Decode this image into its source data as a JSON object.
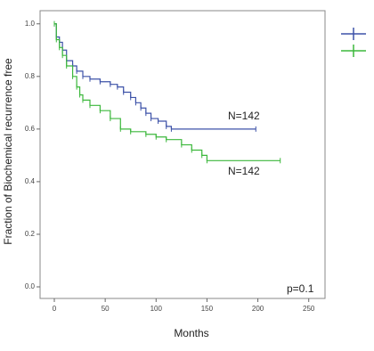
{
  "chart_data": {
    "type": "line",
    "y_label": "Fraction of Biochemical recurrence free",
    "x_label": "Months",
    "annotations": [
      "N=142",
      "N=142",
      "p=0.1"
    ],
    "xlim": [
      -14,
      266
    ],
    "xticks": [
      0,
      50,
      100,
      150,
      200,
      250
    ],
    "ylim": [
      -0.044,
      1.05
    ],
    "yticks": [
      {
        "value": 0,
        "label": "0.0"
      },
      {
        "value": 0.2,
        "label": "0.2"
      },
      {
        "value": 0.4,
        "label": "0.4"
      },
      {
        "value": 0.6,
        "label": "0.6"
      },
      {
        "value": 0.8,
        "label": "0.8"
      },
      {
        "value": 1,
        "label": "1.0"
      }
    ],
    "series": [
      {
        "color": "#3d52a8",
        "x": [
          0,
          2,
          5,
          8,
          12,
          18,
          22,
          28,
          35,
          45,
          55,
          62,
          68,
          75,
          80,
          85,
          90,
          95,
          102,
          110,
          115,
          198
        ],
        "values": [
          1.0,
          0.95,
          0.93,
          0.9,
          0.86,
          0.84,
          0.82,
          0.8,
          0.79,
          0.78,
          0.77,
          0.76,
          0.74,
          0.72,
          0.7,
          0.68,
          0.66,
          0.64,
          0.63,
          0.61,
          0.6,
          0.6
        ]
      },
      {
        "color": "#3cb83c",
        "x": [
          0,
          2,
          5,
          8,
          12,
          18,
          22,
          25,
          28,
          35,
          45,
          55,
          65,
          75,
          90,
          100,
          110,
          125,
          135,
          145,
          150,
          222
        ],
        "values": [
          1.0,
          0.94,
          0.91,
          0.88,
          0.84,
          0.8,
          0.76,
          0.73,
          0.71,
          0.69,
          0.67,
          0.64,
          0.6,
          0.59,
          0.58,
          0.57,
          0.56,
          0.54,
          0.52,
          0.5,
          0.48,
          0.48
        ]
      }
    ]
  }
}
